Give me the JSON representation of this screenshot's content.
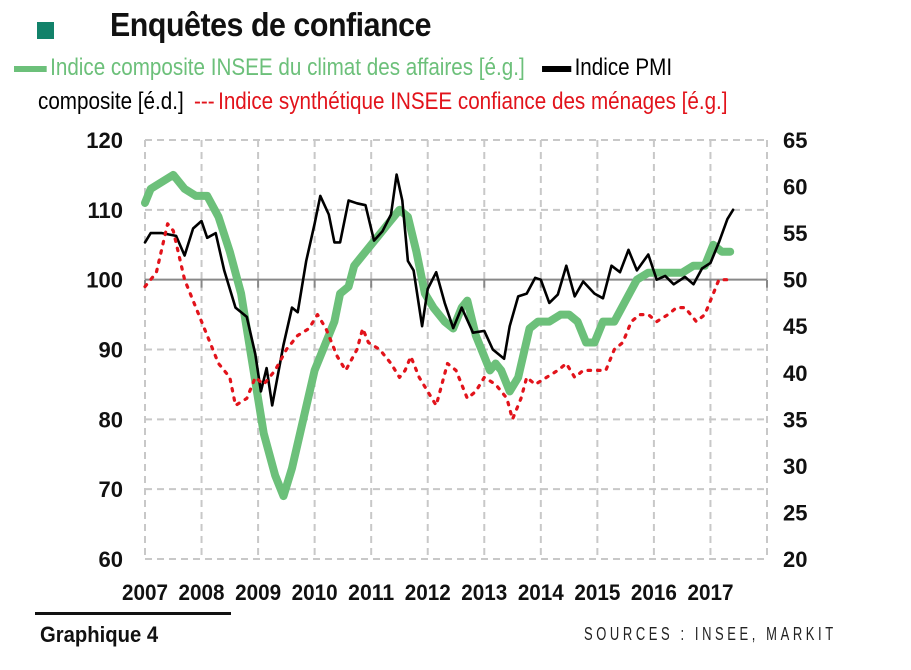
{
  "header": {
    "title": "Enquêtes de confiance",
    "title_square_color": "#12826a"
  },
  "legend": {
    "green_label": "Indice composite INSEE du climat des affaires [é.g.]",
    "black_label_part1": "Indice PMI",
    "black_label_part2": "composite [é.d.]",
    "red_dash": "---",
    "red_label": "Indice synthétique INSEE confiance des ménages [é.g.]"
  },
  "footer": {
    "graph_label": "Graphique 4",
    "sources": "SOURCES : INSEE, MARKIT"
  },
  "chart_data": {
    "type": "line",
    "title": "Enquêtes de confiance",
    "x_ticks": [
      "2007",
      "2008",
      "2009",
      "2010",
      "2011",
      "2012",
      "2013",
      "2014",
      "2015",
      "2016",
      "2017"
    ],
    "xlim": [
      2007,
      2018
    ],
    "y_left": {
      "ticks": [
        "120",
        "110",
        "100",
        "90",
        "80",
        "70",
        "60"
      ],
      "ylim": [
        60,
        120
      ]
    },
    "y_right": {
      "ticks": [
        "65",
        "60",
        "55",
        "50",
        "45",
        "40",
        "35",
        "30",
        "25",
        "20"
      ],
      "ylim": [
        20,
        65
      ]
    },
    "grid": true,
    "reference_line_left": 100,
    "series": [
      {
        "name": "Indice composite INSEE du climat des affaires [é.g.]",
        "axis": "left",
        "color": "#6cc07a",
        "style": "thick",
        "x": [
          2007.0,
          2007.1,
          2007.3,
          2007.5,
          2007.7,
          2007.9,
          2008.1,
          2008.3,
          2008.5,
          2008.7,
          2008.9,
          2009.1,
          2009.3,
          2009.45,
          2009.6,
          2009.8,
          2010.0,
          2010.2,
          2010.35,
          2010.45,
          2010.6,
          2010.7,
          2010.9,
          2011.1,
          2011.3,
          2011.5,
          2011.65,
          2011.8,
          2011.95,
          2012.1,
          2012.3,
          2012.45,
          2012.6,
          2012.7,
          2012.85,
          2013.0,
          2013.1,
          2013.2,
          2013.3,
          2013.45,
          2013.6,
          2013.8,
          2013.95,
          2014.15,
          2014.35,
          2014.5,
          2014.65,
          2014.8,
          2014.95,
          2015.1,
          2015.3,
          2015.5,
          2015.7,
          2015.9,
          2016.1,
          2016.3,
          2016.5,
          2016.7,
          2016.9,
          2017.05,
          2017.2,
          2017.35
        ],
        "y": [
          111,
          113,
          114,
          115,
          113,
          112,
          112,
          109,
          104,
          98,
          88,
          78,
          72,
          69,
          73,
          80,
          87,
          91,
          94,
          98,
          99,
          102,
          104,
          106,
          108,
          110,
          109,
          104,
          98,
          96,
          94,
          93,
          96,
          97,
          92,
          89,
          87,
          88,
          87,
          84,
          86,
          93,
          94,
          94,
          95,
          95,
          94,
          91,
          91,
          94,
          94,
          97,
          100,
          101,
          101,
          101,
          101,
          102,
          102,
          105,
          104,
          104
        ]
      },
      {
        "name": "Indice PMI composite [é.d.]",
        "axis": "right",
        "color": "#000000",
        "style": "solid",
        "x": [
          2007.0,
          2007.1,
          2007.3,
          2007.55,
          2007.7,
          2007.85,
          2008.0,
          2008.1,
          2008.25,
          2008.4,
          2008.6,
          2008.8,
          2008.95,
          2009.05,
          2009.15,
          2009.25,
          2009.45,
          2009.6,
          2009.7,
          2009.85,
          2010.0,
          2010.1,
          2010.25,
          2010.35,
          2010.45,
          2010.6,
          2010.75,
          2010.9,
          2011.05,
          2011.2,
          2011.35,
          2011.45,
          2011.55,
          2011.65,
          2011.75,
          2011.9,
          2012.0,
          2012.15,
          2012.3,
          2012.45,
          2012.6,
          2012.8,
          2013.0,
          2013.15,
          2013.35,
          2013.45,
          2013.6,
          2013.75,
          2013.9,
          2014.0,
          2014.15,
          2014.3,
          2014.45,
          2014.6,
          2014.75,
          2014.95,
          2015.1,
          2015.25,
          2015.4,
          2015.55,
          2015.7,
          2015.9,
          2016.05,
          2016.2,
          2016.35,
          2016.55,
          2016.7,
          2016.85,
          2017.0,
          2017.15,
          2017.3,
          2017.4
        ],
        "y": [
          54,
          55,
          55,
          54.7,
          52.6,
          55.5,
          56.3,
          54.5,
          55,
          51,
          47,
          46,
          42,
          38,
          40.5,
          36.5,
          43,
          47,
          46.5,
          52,
          56,
          59,
          57,
          54,
          54,
          58.5,
          58.2,
          58,
          54.2,
          55.2,
          57,
          61.3,
          58.5,
          52,
          51,
          45,
          49,
          50.8,
          47.5,
          44.8,
          47,
          44.3,
          44.5,
          42.5,
          41.5,
          45,
          48.2,
          48.5,
          50.2,
          50,
          47.5,
          48.4,
          51.5,
          48.2,
          49.8,
          48.5,
          48,
          51.5,
          50.8,
          53.2,
          51,
          52.7,
          50,
          50.4,
          49.5,
          50.3,
          49.5,
          51.2,
          51.8,
          54,
          56.5,
          57.5
        ]
      },
      {
        "name": "Indice synthétique INSEE confiance des ménages [é.g.]",
        "axis": "left",
        "color": "#e2131b",
        "style": "dotted",
        "x": [
          2007.0,
          2007.2,
          2007.4,
          2007.5,
          2007.7,
          2007.9,
          2008.1,
          2008.3,
          2008.5,
          2008.6,
          2008.8,
          2008.95,
          2009.1,
          2009.3,
          2009.5,
          2009.7,
          2009.9,
          2010.05,
          2010.2,
          2010.4,
          2010.55,
          2010.75,
          2010.85,
          2010.95,
          2011.15,
          2011.35,
          2011.5,
          2011.6,
          2011.7,
          2011.85,
          2012.0,
          2012.15,
          2012.35,
          2012.5,
          2012.7,
          2012.85,
          2013.0,
          2013.2,
          2013.4,
          2013.5,
          2013.65,
          2013.75,
          2013.9,
          2014.1,
          2014.3,
          2014.45,
          2014.6,
          2014.75,
          2014.95,
          2015.15,
          2015.3,
          2015.45,
          2015.6,
          2015.75,
          2015.9,
          2016.05,
          2016.25,
          2016.4,
          2016.55,
          2016.75,
          2016.9,
          2017.05,
          2017.15,
          2017.35
        ],
        "y": [
          99,
          101,
          108,
          107,
          100,
          96,
          92,
          88,
          86,
          82,
          83,
          86,
          85,
          87,
          90,
          92,
          93,
          95,
          93,
          89,
          87,
          90,
          93,
          91,
          90,
          88,
          86,
          87,
          89,
          86,
          84,
          82,
          88,
          87,
          83,
          84,
          86,
          85,
          83,
          80,
          83,
          86,
          85,
          86,
          87,
          88,
          86,
          87,
          87,
          87,
          90,
          91,
          94,
          95,
          95,
          94,
          95,
          96,
          96,
          94,
          95,
          98,
          100,
          100
        ]
      }
    ]
  }
}
